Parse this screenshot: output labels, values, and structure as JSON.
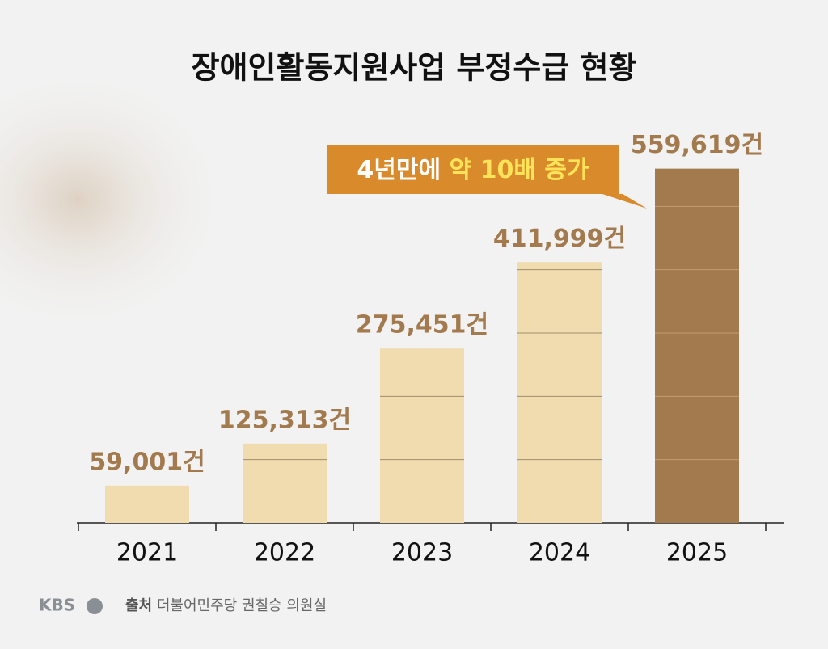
{
  "chart_data": {
    "type": "bar",
    "title": "장애인활동지원사업 부정수급 현황",
    "categories": [
      "2021",
      "2022",
      "2023",
      "2024",
      "2025"
    ],
    "values": [
      59001,
      125313,
      275451,
      411999,
      559619
    ],
    "value_labels": [
      "59,001건",
      "125,313건",
      "275,451건",
      "411,999건",
      "559,619건"
    ],
    "colors": [
      "#f0dcae",
      "#f0dcae",
      "#f0dcae",
      "#f0dcae",
      "#a27a4d"
    ],
    "ylim": [
      0,
      600000
    ],
    "yticks": [
      100000,
      200000,
      300000,
      400000,
      500000
    ],
    "annotation": [
      "4년만에",
      "약 10배 증가"
    ],
    "logo": "KBS",
    "source_label": "출처",
    "source": "더불어민주당 권칠승 의원실"
  }
}
